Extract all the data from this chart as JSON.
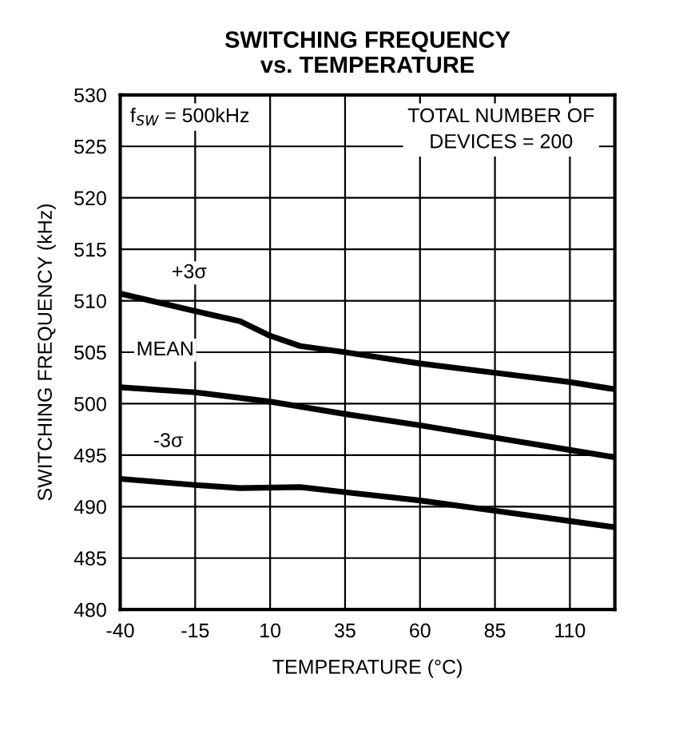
{
  "chart_data": {
    "type": "line",
    "title": "SWITCHING FREQUENCY\nvs. TEMPERATURE",
    "xlabel": "TEMPERATURE (°C)",
    "ylabel": "SWITCHING FREQUENCY (kHz)",
    "annotations": [
      "f$_{SW}$ = 500kHz",
      "TOTAL NUMBER OF\nDEVICES = 200"
    ],
    "series": [
      {
        "name": "+3σ",
        "color": "#000000",
        "x": [
          -40,
          -15,
          0,
          10,
          20,
          35,
          60,
          85,
          110,
          125
        ],
        "values": [
          510.7,
          509.0,
          508.0,
          506.6,
          505.6,
          505.0,
          503.9,
          503.0,
          502.1,
          501.4
        ]
      },
      {
        "name": "MEAN",
        "color": "#000000",
        "x": [
          -40,
          -15,
          10,
          35,
          60,
          85,
          110,
          125
        ],
        "values": [
          501.6,
          501.1,
          500.2,
          499.0,
          497.9,
          496.7,
          495.5,
          494.8
        ]
      },
      {
        "name": "-3σ",
        "color": "#000000",
        "x": [
          -40,
          -15,
          0,
          20,
          35,
          60,
          85,
          110,
          125
        ],
        "values": [
          492.7,
          492.1,
          491.8,
          491.9,
          491.4,
          490.6,
          489.6,
          488.6,
          488.0
        ]
      }
    ],
    "xlim": [
      -40,
      125
    ],
    "xticks": [
      -40,
      -15,
      10,
      35,
      60,
      85,
      110
    ],
    "ylim": [
      480,
      530
    ],
    "yticks": [
      480,
      485,
      490,
      495,
      500,
      505,
      510,
      515,
      520,
      525,
      530
    ],
    "grid": true,
    "line_style": "solid",
    "marker": "none",
    "legend": false
  }
}
